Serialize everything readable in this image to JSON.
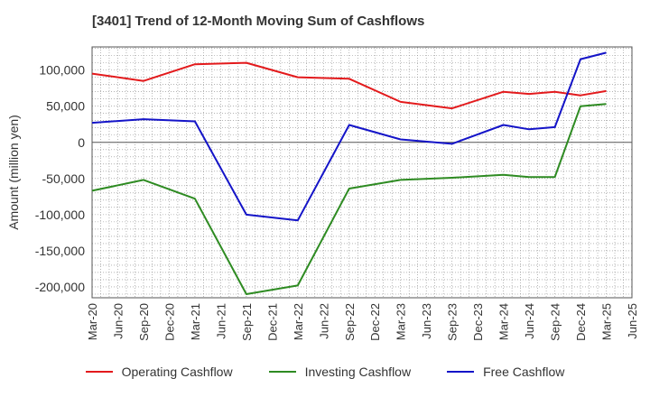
{
  "chart_data": {
    "type": "line",
    "title": "[3401]  Trend of 12-Month Moving Sum of Cashflows",
    "xlabel": "",
    "ylabel": "Amount (million yen)",
    "ylim": [
      -215000,
      132000
    ],
    "yticks": [
      100000,
      50000,
      0,
      -50000,
      -100000,
      -150000,
      -200000
    ],
    "ytick_labels": [
      "100,000",
      "50,000",
      "0",
      "-50,000",
      "-100,000",
      "-150,000",
      "-200,000"
    ],
    "xtick_labels": [
      "Mar-20",
      "Jun-20",
      "Sep-20",
      "Dec-20",
      "Mar-21",
      "Jun-21",
      "Sep-21",
      "Dec-21",
      "Mar-22",
      "Jun-22",
      "Sep-22",
      "Dec-22",
      "Mar-23",
      "Jun-23",
      "Sep-23",
      "Dec-23",
      "Mar-24",
      "Jun-24",
      "Sep-24",
      "Dec-24",
      "Mar-25",
      "Jun-25"
    ],
    "grid": true,
    "legend_position": "bottom",
    "series": [
      {
        "name": "Operating Cashflow",
        "color": "#e31a1c",
        "points": [
          [
            "Mar-20",
            95000
          ],
          [
            "Sep-20",
            85000
          ],
          [
            "Mar-21",
            108000
          ],
          [
            "Sep-21",
            110000
          ],
          [
            "Mar-22",
            90000
          ],
          [
            "Sep-22",
            88000
          ],
          [
            "Mar-23",
            56000
          ],
          [
            "Sep-23",
            47000
          ],
          [
            "Mar-24",
            70000
          ],
          [
            "Jun-24",
            67000
          ],
          [
            "Sep-24",
            70000
          ],
          [
            "Dec-24",
            65000
          ],
          [
            "Mar-25",
            71000
          ]
        ]
      },
      {
        "name": "Investing Cashflow",
        "color": "#2e8b22",
        "points": [
          [
            "Mar-20",
            -67000
          ],
          [
            "Sep-20",
            -52000
          ],
          [
            "Mar-21",
            -78000
          ],
          [
            "Sep-21",
            -210000
          ],
          [
            "Mar-22",
            -198000
          ],
          [
            "Sep-22",
            -64000
          ],
          [
            "Mar-23",
            -52000
          ],
          [
            "Sep-23",
            -49000
          ],
          [
            "Mar-24",
            -45000
          ],
          [
            "Jun-24",
            -48000
          ],
          [
            "Sep-24",
            -48000
          ],
          [
            "Dec-24",
            50000
          ],
          [
            "Mar-25",
            53000
          ]
        ]
      },
      {
        "name": "Free Cashflow",
        "color": "#1414c8",
        "points": [
          [
            "Mar-20",
            27000
          ],
          [
            "Sep-20",
            32000
          ],
          [
            "Mar-21",
            29000
          ],
          [
            "Sep-21",
            -100000
          ],
          [
            "Mar-22",
            -108000
          ],
          [
            "Sep-22",
            24000
          ],
          [
            "Mar-23",
            4000
          ],
          [
            "Sep-23",
            -2000
          ],
          [
            "Mar-24",
            24000
          ],
          [
            "Jun-24",
            18000
          ],
          [
            "Sep-24",
            21000
          ],
          [
            "Dec-24",
            115000
          ],
          [
            "Mar-25",
            124000
          ]
        ]
      }
    ]
  }
}
